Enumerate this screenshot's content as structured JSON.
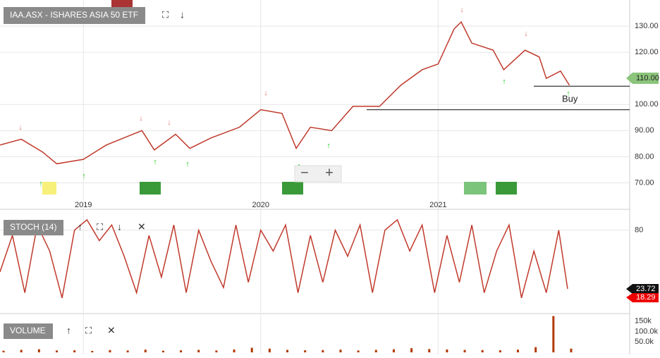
{
  "chart_data": [
    {
      "type": "line",
      "title": "IAA.ASX - ISHARES ASIA 50 ETF",
      "annotation": "Buy",
      "price_tag": "110.00",
      "x": [
        2018.53,
        2018.65,
        2018.77,
        2018.85,
        2019.0,
        2019.13,
        2019.33,
        2019.4,
        2019.52,
        2019.6,
        2019.72,
        2019.88,
        2020.0,
        2020.12,
        2020.2,
        2020.28,
        2020.4,
        2020.52,
        2020.67,
        2020.79,
        2020.91,
        2021.0,
        2021.09,
        2021.13,
        2021.19,
        2021.31,
        2021.37,
        2021.49,
        2021.57,
        2021.61,
        2021.69,
        2021.74
      ],
      "series": [
        {
          "color": "#c0392b",
          "values": [
            84.5,
            86.7,
            81.8,
            77.3,
            79,
            84.5,
            90,
            82.6,
            88.6,
            83.2,
            87.2,
            91.3,
            98,
            96.6,
            83.2,
            91.3,
            90,
            99.3,
            99.3,
            107.4,
            113.3,
            115.5,
            128.9,
            131.6,
            123.5,
            120.8,
            113.3,
            120.8,
            118.2,
            110,
            112.8,
            107.4
          ]
        }
      ],
      "levels": [
        107,
        98
      ],
      "xlim": [
        2018.53,
        2022.08
      ],
      "xticks": [
        2019,
        2020,
        2021
      ],
      "ylim": [
        65,
        140
      ],
      "yticks": [
        {
          "value": 70,
          "label": "70.00"
        },
        {
          "value": 80,
          "label": "80.00"
        },
        {
          "value": 90,
          "label": "90.00"
        },
        {
          "value": 100,
          "label": "100.00"
        },
        {
          "value": 120,
          "label": "120.00"
        },
        {
          "value": 130,
          "label": "130.00"
        }
      ],
      "grid": true
    },
    {
      "type": "line",
      "title": "STOCH (14)",
      "tags": [
        "23.72",
        "18.29"
      ],
      "x": [
        2018.53,
        2018.6,
        2018.67,
        2018.74,
        2018.81,
        2018.88,
        2018.95,
        2019.02,
        2019.09,
        2019.16,
        2019.23,
        2019.3,
        2019.37,
        2019.44,
        2019.51,
        2019.58,
        2019.65,
        2019.72,
        2019.79,
        2019.86,
        2019.93,
        2020.0,
        2020.07,
        2020.14,
        2020.21,
        2020.28,
        2020.35,
        2020.42,
        2020.49,
        2020.56,
        2020.63,
        2020.7,
        2020.77,
        2020.84,
        2020.91,
        2020.98,
        2021.05,
        2021.12,
        2021.19,
        2021.26,
        2021.33,
        2021.4,
        2021.47,
        2021.54,
        2021.61,
        2021.68,
        2021.73
      ],
      "series": [
        {
          "color": "#c0392b",
          "values": [
            40,
            75,
            20,
            85,
            60,
            15,
            80,
            90,
            70,
            85,
            55,
            20,
            75,
            35,
            85,
            20,
            80,
            50,
            25,
            85,
            30,
            80,
            60,
            85,
            20,
            75,
            30,
            80,
            55,
            85,
            20,
            80,
            90,
            60,
            85,
            20,
            75,
            30,
            85,
            20,
            60,
            85,
            15,
            60,
            20,
            80,
            23.72
          ]
        }
      ],
      "xlim": [
        2018.53,
        2022.08
      ],
      "ylim": [
        0,
        98
      ],
      "yticks": [
        80
      ],
      "grid": true
    },
    {
      "type": "bar",
      "title": "VOLUME",
      "x": [
        2018.55,
        2018.65,
        2018.75,
        2018.85,
        2018.95,
        2019.05,
        2019.15,
        2019.25,
        2019.35,
        2019.45,
        2019.55,
        2019.65,
        2019.75,
        2019.85,
        2019.95,
        2020.05,
        2020.15,
        2020.25,
        2020.35,
        2020.45,
        2020.55,
        2020.65,
        2020.75,
        2020.85,
        2020.95,
        2021.05,
        2021.15,
        2021.25,
        2021.35,
        2021.45,
        2021.55,
        2021.65,
        2021.75
      ],
      "values": [
        8000,
        12000,
        15000,
        9000,
        10000,
        7000,
        11000,
        9000,
        13000,
        8000,
        10000,
        12000,
        9000,
        14000,
        22000,
        18000,
        12000,
        10000,
        11000,
        13000,
        9000,
        12000,
        15000,
        20000,
        16000,
        14000,
        12000,
        11000,
        10000,
        13000,
        25000,
        175000,
        18000
      ],
      "color": "#b03a00",
      "xlim": [
        2018.53,
        2022.08
      ],
      "ylim": [
        0,
        180000
      ],
      "yticks": [
        {
          "value": 50000,
          "label": "50.0k"
        },
        {
          "value": 100000,
          "label": "100.0k"
        },
        {
          "value": 150000,
          "label": "150k"
        }
      ]
    }
  ]
}
